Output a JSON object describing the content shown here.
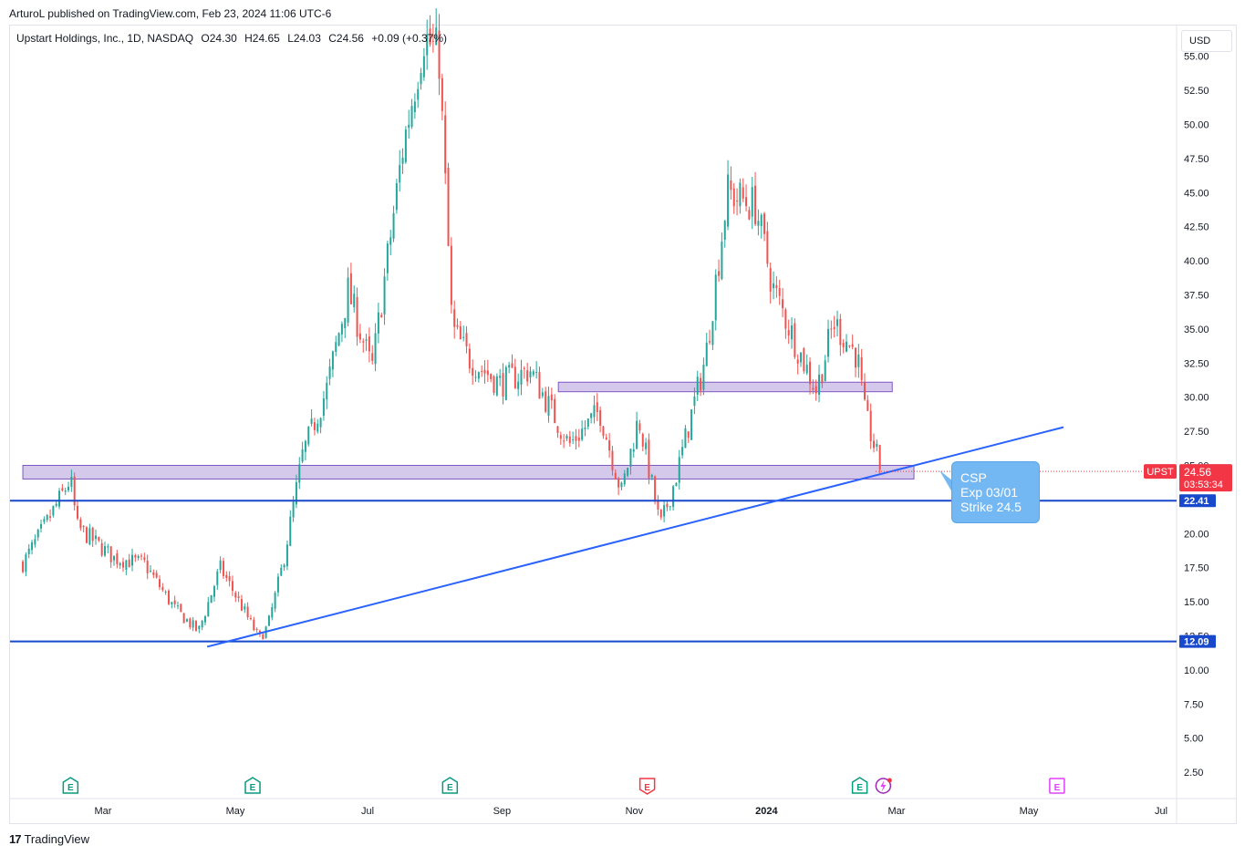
{
  "header": {
    "published": "ArturoL published on TradingView.com, Feb 23, 2024 11:06 UTC-6"
  },
  "legend": {
    "symbol": "Upstart Holdings, Inc., 1D, NASDAQ",
    "open": "O24.30",
    "high": "H24.65",
    "low": "L24.03",
    "close": "C24.56",
    "change": "+0.09 (+0.37%)"
  },
  "currency": "USD",
  "footer": {
    "brand": "TradingView"
  },
  "note": {
    "lines": [
      "CSP",
      "Exp 03/01",
      "Strike 24.5"
    ]
  },
  "colors": {
    "up": "#26a69a",
    "down": "#ef5350",
    "trend": "#2962ff",
    "hline": "#1848cc",
    "zone_fill": "#b39ddb",
    "zone_border": "#7e57c2",
    "note_bg": "#74b8f3",
    "price_tag": "#f23645"
  },
  "chart_data": {
    "type": "candlestick",
    "symbol": "UPST",
    "title": "Upstart Holdings, Inc., 1D, NASDAQ",
    "timeframe": "1D",
    "ylim": [
      0,
      57
    ],
    "y_ticks": [
      2.5,
      5.0,
      7.5,
      10.0,
      12.5,
      15.0,
      17.5,
      20.0,
      22.5,
      25.0,
      27.5,
      30.0,
      32.5,
      35.0,
      37.5,
      40.0,
      42.5,
      45.0,
      47.5,
      50.0,
      52.5,
      55.0
    ],
    "x_ticks": [
      "Mar",
      "May",
      "Jul",
      "Sep",
      "Nov",
      "2024",
      "Mar",
      "May",
      "Jul"
    ],
    "x_tick_dates": [
      "2023-03-01",
      "2023-05-01",
      "2023-07-01",
      "2023-09-01",
      "2023-11-01",
      "2024-01-01",
      "2024-03-01",
      "2024-05-01",
      "2024-07-01"
    ],
    "last_price": {
      "label": "UPST",
      "value": 24.56,
      "countdown": "03:53:34"
    },
    "horizontal_lines": [
      {
        "value": 22.41,
        "label": "22.41"
      },
      {
        "value": 12.09,
        "label": "12.09"
      }
    ],
    "zones": [
      {
        "from": 24.0,
        "to": 25.0,
        "start": "2023-01-23",
        "end": "2024-03-09"
      },
      {
        "from": 30.4,
        "to": 31.1,
        "start": "2023-09-27",
        "end": "2024-02-28"
      }
    ],
    "trendline": [
      {
        "date": "2023-04-18",
        "value": 11.7
      },
      {
        "date": "2024-05-17",
        "value": 27.8
      }
    ],
    "earnings": [
      {
        "date": "2023-02-14",
        "type": "E",
        "status": "past-green"
      },
      {
        "date": "2023-05-09",
        "type": "E",
        "status": "past-green"
      },
      {
        "date": "2023-08-08",
        "type": "E",
        "status": "past-green"
      },
      {
        "date": "2023-11-07",
        "type": "E",
        "status": "past-red"
      },
      {
        "date": "2024-02-13",
        "type": "E",
        "status": "past-green"
      },
      {
        "date": "2024-05-14",
        "type": "E",
        "status": "future"
      }
    ],
    "path": [
      [
        "2023-01-23",
        17.8
      ],
      [
        "2023-02-03",
        20.8
      ],
      [
        "2023-02-14",
        24.0
      ],
      [
        "2023-02-17",
        20.5
      ],
      [
        "2023-03-06",
        18.2
      ],
      [
        "2023-03-20",
        17.8
      ],
      [
        "2023-04-03",
        14.5
      ],
      [
        "2023-04-14",
        12.8
      ],
      [
        "2023-04-24",
        17.5
      ],
      [
        "2023-05-01",
        15.5
      ],
      [
        "2023-05-12",
        12.3
      ],
      [
        "2023-05-16",
        13.2
      ],
      [
        "2023-05-23",
        17.8
      ],
      [
        "2023-06-01",
        25.8
      ],
      [
        "2023-06-12",
        30.5
      ],
      [
        "2023-06-22",
        37.8
      ],
      [
        "2023-07-03",
        32.0
      ],
      [
        "2023-07-17",
        48.0
      ],
      [
        "2023-07-27",
        56.5
      ],
      [
        "2023-08-03",
        55.0
      ],
      [
        "2023-08-09",
        35.0
      ],
      [
        "2023-08-17",
        32.8
      ],
      [
        "2023-08-31",
        31.0
      ],
      [
        "2023-09-14",
        32.0
      ],
      [
        "2023-10-02",
        26.5
      ],
      [
        "2023-10-16",
        29.0
      ],
      [
        "2023-10-26",
        23.0
      ],
      [
        "2023-11-03",
        28.5
      ],
      [
        "2023-11-13",
        20.5
      ],
      [
        "2023-11-20",
        24.0
      ],
      [
        "2023-12-04",
        33.0
      ],
      [
        "2023-12-14",
        45.0
      ],
      [
        "2023-12-27",
        44.0
      ],
      [
        "2024-01-04",
        38.0
      ],
      [
        "2024-01-17",
        33.0
      ],
      [
        "2024-01-24",
        30.5
      ],
      [
        "2024-02-01",
        35.5
      ],
      [
        "2024-02-12",
        33.0
      ],
      [
        "2024-02-15",
        29.0
      ],
      [
        "2024-02-23",
        24.56
      ]
    ]
  }
}
